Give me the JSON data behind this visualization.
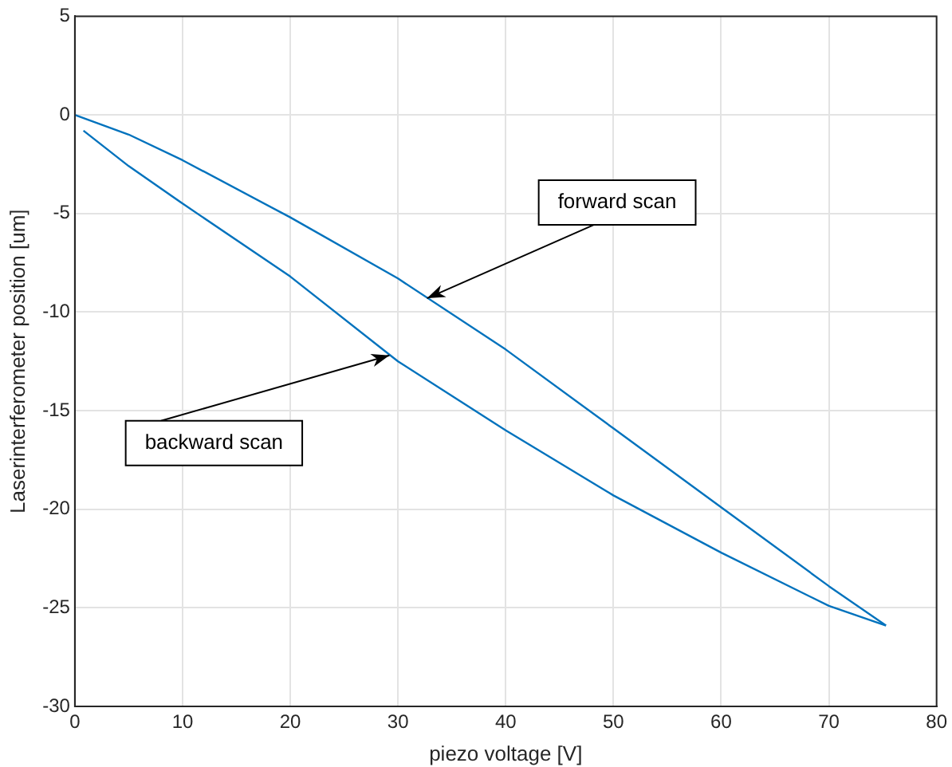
{
  "chart_data": {
    "type": "line",
    "xlabel": "piezo voltage [V]",
    "ylabel": "Laserinterferometer position [um]",
    "series": [
      {
        "color": "#0072bd",
        "x": [
          0,
          5,
          10,
          20,
          30,
          40,
          50,
          60,
          70,
          75.3
        ],
        "values": [
          0,
          -1.0,
          -2.3,
          -5.2,
          -8.3,
          -11.9,
          -15.9,
          -19.9,
          -23.9,
          -25.9
        ]
      },
      {
        "color": "#0072bd",
        "x": [
          75.3,
          70,
          60,
          50,
          40,
          30,
          20,
          10,
          5,
          0.8
        ],
        "values": [
          -25.9,
          -24.9,
          -22.2,
          -19.3,
          -16.0,
          -12.5,
          -8.2,
          -4.5,
          -2.6,
          -0.8
        ]
      }
    ],
    "annotations": [
      {
        "text": "forward scan",
        "x": 32.7,
        "y": -9.3
      },
      {
        "text": "backward scan",
        "x": 29.2,
        "y": -12.2
      }
    ],
    "xlim": [
      0,
      80
    ],
    "xticks": [
      0,
      10,
      20,
      30,
      40,
      50,
      60,
      70,
      80
    ],
    "ylim": [
      -30,
      5
    ],
    "yticks": [
      -30,
      -25,
      -20,
      -15,
      -10,
      -5,
      0,
      5
    ],
    "grid": true,
    "legend": false,
    "marker": "none",
    "line_style": "solid"
  }
}
